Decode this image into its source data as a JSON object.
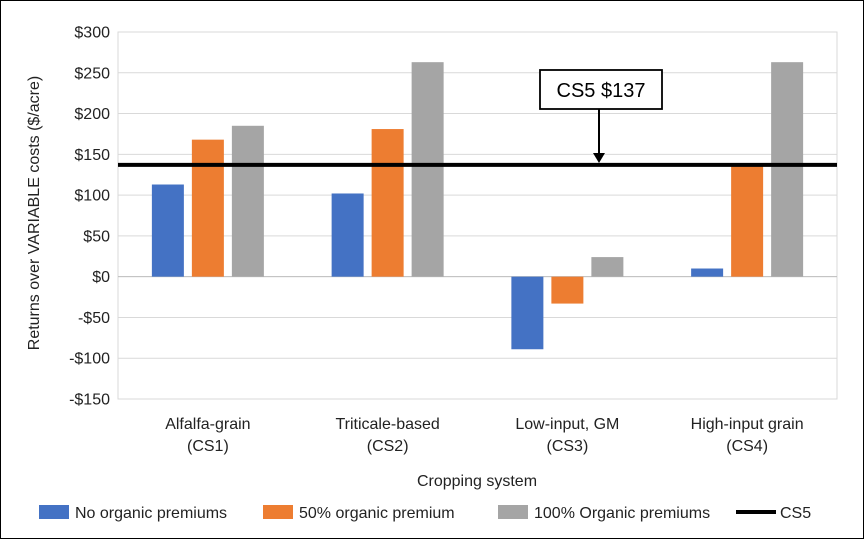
{
  "chart_data": {
    "type": "bar",
    "title": "",
    "xlabel": "Cropping system",
    "ylabel": "Returns over VARIABLE costs ($/acre)",
    "ylim": [
      -150,
      300
    ],
    "ytick_values": [
      -150,
      -100,
      -50,
      0,
      50,
      100,
      150,
      200,
      250,
      300
    ],
    "ytick_labels": [
      "-$150",
      "-$100",
      "-$50",
      "$0",
      "$50",
      "$100",
      "$150",
      "$200",
      "$250",
      "$300"
    ],
    "grid": true,
    "legend_position": "bottom",
    "categories": [
      [
        "Alfalfa-grain",
        "(CS1)"
      ],
      [
        "Triticale-based",
        "(CS2)"
      ],
      [
        "Low-input, GM",
        "(CS3)"
      ],
      [
        "High-input grain",
        "(CS4)"
      ]
    ],
    "series": [
      {
        "name": "No organic premiums",
        "color": "#4472C4",
        "values": [
          113,
          102,
          -89,
          10
        ]
      },
      {
        "name": "50% organic premium",
        "color": "#ED7D31",
        "values": [
          168,
          181,
          -33,
          137
        ]
      },
      {
        "name": "100% Organic premiums",
        "color": "#A5A5A5",
        "values": [
          185,
          263,
          24,
          263
        ]
      }
    ],
    "reference_line": {
      "name": "CS5",
      "value": 137,
      "color": "#000000"
    },
    "annotation": {
      "text": "CS5 $137"
    }
  }
}
